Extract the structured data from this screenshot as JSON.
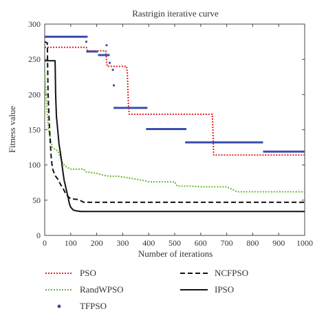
{
  "chart_data": {
    "type": "line",
    "title": "Rastrigin iterative curve",
    "xlabel": "Number of iterations",
    "ylabel": "Fitness value",
    "xlim": [
      0,
      1000
    ],
    "ylim": [
      0,
      300
    ],
    "xticks": [
      0,
      100,
      200,
      300,
      400,
      500,
      600,
      700,
      800,
      900,
      1000
    ],
    "yticks": [
      0,
      50,
      100,
      150,
      200,
      250,
      300
    ],
    "grid": false,
    "legend_position": "bottom",
    "series": [
      {
        "name": "PSO",
        "style": "dotted",
        "color": "#e02020",
        "x": [
          0,
          160,
          165,
          235,
          240,
          262,
          265,
          315,
          318,
          322,
          325,
          645,
          650,
          1000
        ],
        "y": [
          267,
          267,
          262,
          262,
          240,
          240,
          240,
          240,
          230,
          185,
          172,
          172,
          114,
          114
        ]
      },
      {
        "name": "RandWPSO",
        "style": "dotted",
        "color": "#6ab42d",
        "x": [
          0,
          5,
          10,
          15,
          20,
          25,
          30,
          40,
          50,
          60,
          70,
          80,
          90,
          100,
          150,
          160,
          200,
          230,
          250,
          280,
          300,
          350,
          380,
          400,
          500,
          510,
          560,
          600,
          700,
          740,
          1000
        ],
        "y": [
          235,
          200,
          170,
          150,
          140,
          132,
          125,
          122,
          120,
          112,
          102,
          98,
          96,
          94,
          94,
          90,
          88,
          85,
          84,
          84,
          83,
          80,
          78,
          76,
          76,
          70,
          70,
          69,
          69,
          62,
          62
        ]
      },
      {
        "name": "TFPSO",
        "style": "markers",
        "color": "#3a4db0",
        "segments": [
          {
            "x": [
              0,
              165
            ],
            "y": [
              282,
              282
            ]
          },
          {
            "x": [
              160,
              205
            ],
            "y": [
              261,
              261
            ]
          },
          {
            "x": [
              205,
              250
            ],
            "y": [
              256,
              256
            ]
          },
          {
            "x": [
              265,
              395
            ],
            "y": [
              181,
              181
            ]
          },
          {
            "x": [
              390,
              545
            ],
            "y": [
              151,
              151
            ]
          },
          {
            "x": [
              540,
              840
            ],
            "y": [
              132,
              132
            ]
          },
          {
            "x": [
              840,
              1000
            ],
            "y": [
              119,
              119
            ]
          }
        ],
        "points": [
          {
            "x": 160,
            "y": 275
          },
          {
            "x": 238,
            "y": 270
          },
          {
            "x": 250,
            "y": 245
          },
          {
            "x": 262,
            "y": 235
          },
          {
            "x": 266,
            "y": 213
          }
        ]
      },
      {
        "name": "NCFPSO",
        "style": "dashed",
        "color": "#111111",
        "x": [
          0,
          10,
          13,
          17,
          20,
          25,
          30,
          40,
          50,
          60,
          70,
          80,
          90,
          100,
          130,
          150,
          1000
        ],
        "y": [
          275,
          273,
          200,
          165,
          140,
          110,
          95,
          85,
          80,
          73,
          67,
          60,
          55,
          52,
          51,
          47,
          47
        ]
      },
      {
        "name": "IPSO",
        "style": "solid",
        "color": "#111111",
        "x": [
          0,
          40,
          42,
          45,
          50,
          55,
          60,
          65,
          70,
          75,
          80,
          85,
          90,
          95,
          100,
          110,
          120,
          140,
          1000
        ],
        "y": [
          248,
          248,
          200,
          170,
          150,
          130,
          118,
          105,
          90,
          78,
          70,
          62,
          54,
          45,
          40,
          36,
          35,
          34,
          34
        ]
      }
    ]
  }
}
